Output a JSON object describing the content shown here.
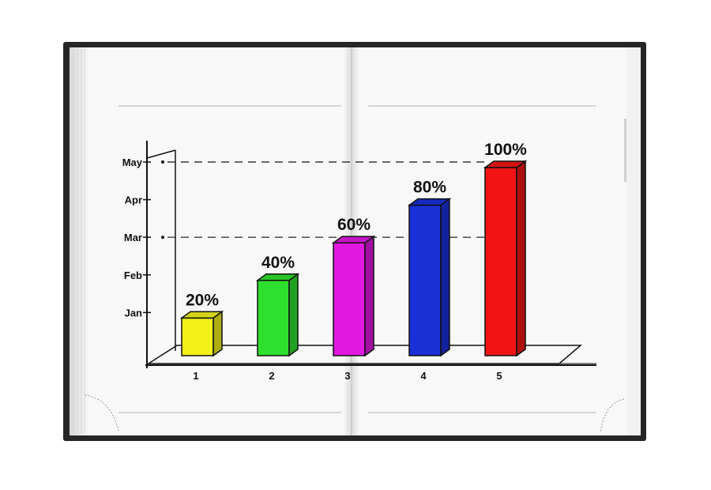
{
  "chart_data": {
    "type": "bar",
    "categories": [
      "1",
      "2",
      "3",
      "4",
      "5"
    ],
    "values": [
      20,
      40,
      60,
      80,
      100
    ],
    "data_labels": [
      "20%",
      "40%",
      "60%",
      "80%",
      "100%"
    ],
    "y_ticks": [
      "Jan",
      "Feb",
      "Mar",
      "Apr",
      "May"
    ],
    "ylim": [
      0,
      100
    ],
    "colors": [
      "#f2f21a",
      "#2ee02e",
      "#e018e0",
      "#1a2fd6",
      "#f01414"
    ],
    "title": "",
    "xlabel": "",
    "ylabel": "",
    "grid": false,
    "legend": "none",
    "reference_lines": [
      "May",
      "Mar"
    ]
  }
}
